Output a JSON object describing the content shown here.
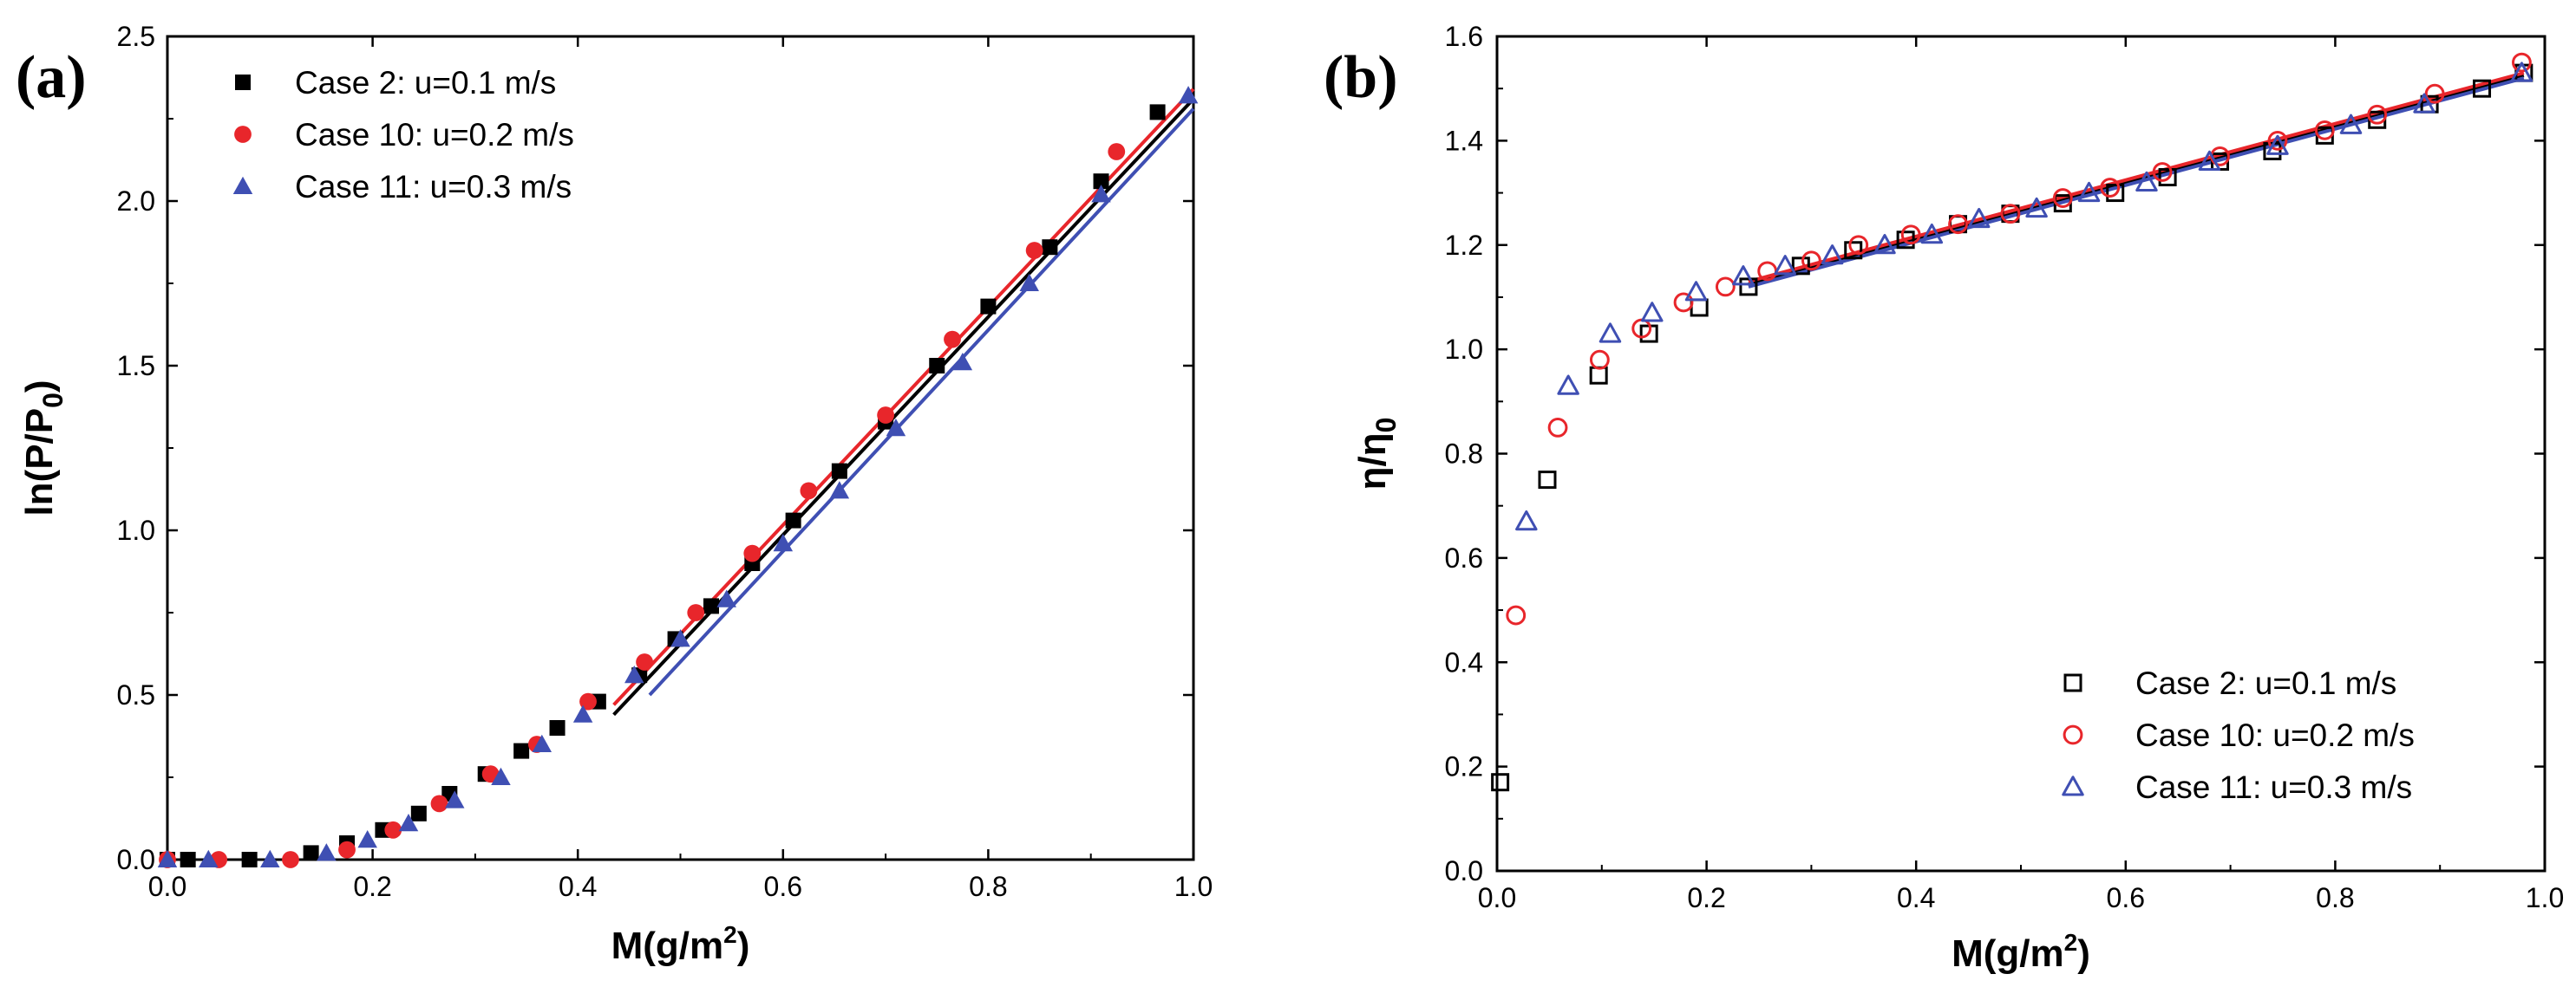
{
  "chart_data": [
    {
      "panel": "(a)",
      "type": "scatter",
      "xlabel": "M(g/m2)",
      "ylabel": "ln(P/P0)",
      "xlim": [
        0,
        1.0
      ],
      "ylim": [
        0,
        2.5
      ],
      "xticks": [
        "0.0",
        "0.2",
        "0.4",
        "0.6",
        "0.8",
        "1.0"
      ],
      "yticks": [
        "0.0",
        "0.5",
        "1.0",
        "1.5",
        "2.0",
        "2.5"
      ],
      "legend_position": "top-left",
      "series": [
        {
          "name": "Case 2: u=0.1 m/s",
          "marker": "square-filled",
          "color": "#000000",
          "x": [
            0.0,
            0.02,
            0.08,
            0.14,
            0.175,
            0.21,
            0.245,
            0.275,
            0.31,
            0.345,
            0.38,
            0.42,
            0.46,
            0.495,
            0.53,
            0.57,
            0.61,
            0.655,
            0.7,
            0.75,
            0.8,
            0.86,
            0.91,
            0.965
          ],
          "y": [
            0.0,
            0.0,
            0.0,
            0.02,
            0.05,
            0.09,
            0.14,
            0.2,
            0.26,
            0.33,
            0.4,
            0.48,
            0.56,
            0.67,
            0.77,
            0.9,
            1.03,
            1.18,
            1.33,
            1.5,
            1.68,
            1.86,
            2.06,
            2.27
          ],
          "fit": {
            "x": [
              0.435,
              1.0
            ],
            "y": [
              0.44,
              2.31
            ]
          }
        },
        {
          "name": "Case 10: u=0.2 m/s",
          "marker": "circle-filled",
          "color": "#e8262b",
          "x": [
            0.0,
            0.05,
            0.12,
            0.175,
            0.22,
            0.265,
            0.315,
            0.36,
            0.41,
            0.465,
            0.515,
            0.57,
            0.625,
            0.7,
            0.765,
            0.845,
            0.925
          ],
          "y": [
            0.0,
            0.0,
            0.0,
            0.03,
            0.09,
            0.17,
            0.26,
            0.35,
            0.48,
            0.6,
            0.75,
            0.93,
            1.12,
            1.35,
            1.58,
            1.85,
            2.15
          ],
          "fit": {
            "x": [
              0.435,
              1.0
            ],
            "y": [
              0.47,
              2.34
            ]
          }
        },
        {
          "name": "Case 11: u=0.3 m/s",
          "marker": "triangle-filled",
          "color": "#3f4fb3",
          "x": [
            0.0,
            0.04,
            0.1,
            0.155,
            0.195,
            0.235,
            0.28,
            0.325,
            0.365,
            0.405,
            0.455,
            0.5,
            0.545,
            0.6,
            0.655,
            0.71,
            0.775,
            0.84,
            0.91,
            0.995
          ],
          "y": [
            0.0,
            0.0,
            0.0,
            0.02,
            0.06,
            0.11,
            0.18,
            0.25,
            0.35,
            0.44,
            0.56,
            0.67,
            0.79,
            0.96,
            1.12,
            1.31,
            1.51,
            1.75,
            2.02,
            2.32
          ],
          "fit": {
            "x": [
              0.47,
              1.0
            ],
            "y": [
              0.5,
              2.28
            ]
          }
        }
      ]
    },
    {
      "panel": "(b)",
      "type": "scatter",
      "xlabel": "M(g/m2)",
      "ylabel": "η/η0",
      "xlim": [
        0,
        1.0
      ],
      "ylim": [
        0,
        1.6
      ],
      "xticks": [
        "0.0",
        "0.2",
        "0.4",
        "0.6",
        "0.8",
        "1.0"
      ],
      "yticks": [
        "0.0",
        "0.2",
        "0.4",
        "0.6",
        "0.8",
        "1.0",
        "1.2",
        "1.4",
        "1.6"
      ],
      "legend_position": "bottom-right",
      "series": [
        {
          "name": "Case 2: u=0.1 m/s",
          "marker": "square-open",
          "color": "#000000",
          "x": [
            0.003,
            0.048,
            0.097,
            0.145,
            0.193,
            0.24,
            0.29,
            0.34,
            0.39,
            0.44,
            0.49,
            0.54,
            0.59,
            0.64,
            0.69,
            0.74,
            0.79,
            0.84,
            0.89,
            0.94,
            0.98
          ],
          "y": [
            0.17,
            0.75,
            0.95,
            1.03,
            1.08,
            1.12,
            1.16,
            1.19,
            1.21,
            1.24,
            1.26,
            1.28,
            1.3,
            1.33,
            1.36,
            1.38,
            1.41,
            1.44,
            1.47,
            1.5,
            1.53
          ]
        },
        {
          "name": "Case 10: u=0.2 m/s",
          "marker": "circle-open",
          "color": "#e8262b",
          "x": [
            0.018,
            0.058,
            0.098,
            0.138,
            0.178,
            0.218,
            0.258,
            0.3,
            0.345,
            0.395,
            0.44,
            0.49,
            0.54,
            0.585,
            0.635,
            0.69,
            0.745,
            0.79,
            0.84,
            0.895,
            0.978
          ],
          "y": [
            0.49,
            0.85,
            0.98,
            1.04,
            1.09,
            1.12,
            1.15,
            1.17,
            1.2,
            1.22,
            1.24,
            1.26,
            1.29,
            1.31,
            1.34,
            1.37,
            1.4,
            1.42,
            1.45,
            1.49,
            1.55
          ]
        },
        {
          "name": "Case 11: u=0.3 m/s",
          "marker": "triangle-open",
          "color": "#3f4fb3",
          "x": [
            0.028,
            0.068,
            0.108,
            0.148,
            0.19,
            0.235,
            0.275,
            0.32,
            0.37,
            0.415,
            0.46,
            0.515,
            0.565,
            0.62,
            0.68,
            0.745,
            0.815,
            0.885,
            0.978
          ],
          "y": [
            0.67,
            0.93,
            1.03,
            1.07,
            1.11,
            1.14,
            1.16,
            1.18,
            1.2,
            1.22,
            1.25,
            1.27,
            1.3,
            1.32,
            1.36,
            1.39,
            1.43,
            1.47,
            1.53
          ]
        }
      ],
      "fit_lines": [
        {
          "color": "#000000",
          "x": [
            0.24,
            0.98
          ],
          "y": [
            1.125,
            1.525
          ]
        },
        {
          "color": "#e8262b",
          "x": [
            0.24,
            0.98
          ],
          "y": [
            1.13,
            1.53
          ]
        },
        {
          "color": "#3f4fb3",
          "x": [
            0.24,
            0.98
          ],
          "y": [
            1.12,
            1.52
          ]
        }
      ]
    }
  ]
}
